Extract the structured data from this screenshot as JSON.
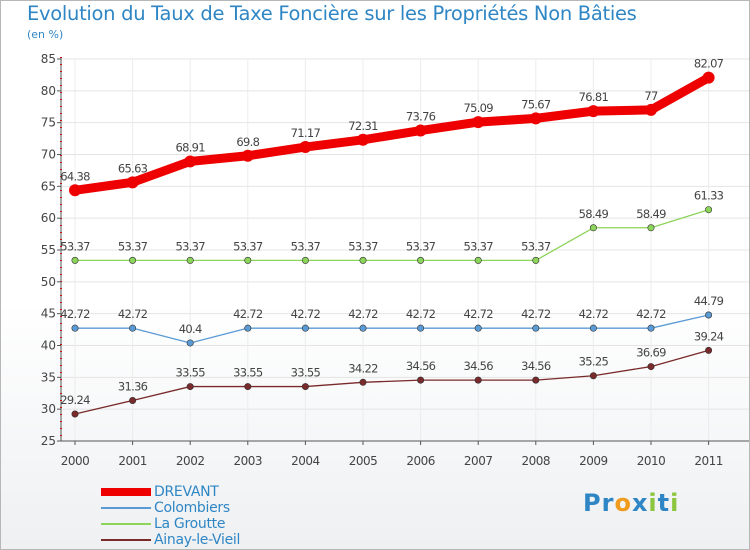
{
  "title": "Evolution du Taux de Taxe Foncière sur les Propriétés Non Bâties",
  "subtitle": "(en %)",
  "logo": {
    "letters": [
      "P",
      "r",
      "o",
      "x",
      "i",
      "t",
      "i"
    ],
    "colors": [
      "#2f86c5",
      "#2f86c5",
      "#f09a1e",
      "#2f86c5",
      "#8cc63f",
      "#2f86c5",
      "#8cc63f"
    ]
  },
  "chart_data": {
    "type": "line",
    "title": "Evolution du Taux de Taxe Foncière sur les Propriétés Non Bâties",
    "ylabel": "(en %)",
    "xlabel": "",
    "ylim": [
      25,
      85
    ],
    "yticks": [
      "25",
      "30",
      "35",
      "40",
      "45",
      "50",
      "55",
      "60",
      "65",
      "70",
      "75",
      "80",
      "85"
    ],
    "categories": [
      "2000",
      "2001",
      "2002",
      "2003",
      "2004",
      "2005",
      "2006",
      "2007",
      "2008",
      "2009",
      "2010",
      "2011"
    ],
    "series": [
      {
        "name": "DREVANT",
        "color": "#ee0000",
        "bold": true,
        "values": [
          64.38,
          65.63,
          68.91,
          69.8,
          71.17,
          72.31,
          73.76,
          75.09,
          75.67,
          76.81,
          77,
          82.07
        ],
        "labels": [
          "64.38",
          "65.63",
          "68.91",
          "69.8",
          "71.17",
          "72.31",
          "73.76",
          "75.09",
          "75.67",
          "76.81",
          "77",
          "82.07"
        ]
      },
      {
        "name": "Colombiers",
        "color": "#5b9bd5",
        "bold": false,
        "values": [
          42.72,
          42.72,
          40.4,
          42.72,
          42.72,
          42.72,
          42.72,
          42.72,
          42.72,
          42.72,
          42.72,
          44.79
        ],
        "labels": [
          "42.72",
          "42.72",
          "40.4",
          "42.72",
          "42.72",
          "42.72",
          "42.72",
          "42.72",
          "42.72",
          "42.72",
          "42.72",
          "44.79"
        ]
      },
      {
        "name": "La Groutte",
        "color": "#8cd45a",
        "bold": false,
        "values": [
          53.37,
          53.37,
          53.37,
          53.37,
          53.37,
          53.37,
          53.37,
          53.37,
          53.37,
          58.49,
          58.49,
          61.33
        ],
        "labels": [
          "53.37",
          "53.37",
          "53.37",
          "53.37",
          "53.37",
          "53.37",
          "53.37",
          "53.37",
          "53.37",
          "58.49",
          "58.49",
          "61.33"
        ]
      },
      {
        "name": "Ainay-le-Vieil",
        "color": "#7a2a2a",
        "bold": false,
        "values": [
          29.24,
          31.36,
          33.55,
          33.55,
          33.55,
          34.22,
          34.56,
          34.56,
          34.56,
          35.25,
          36.69,
          39.24
        ],
        "labels": [
          "29.24",
          "31.36",
          "33.55",
          "33.55",
          "33.55",
          "34.22",
          "34.56",
          "34.56",
          "34.56",
          "35.25",
          "36.69",
          "39.24"
        ]
      }
    ]
  }
}
